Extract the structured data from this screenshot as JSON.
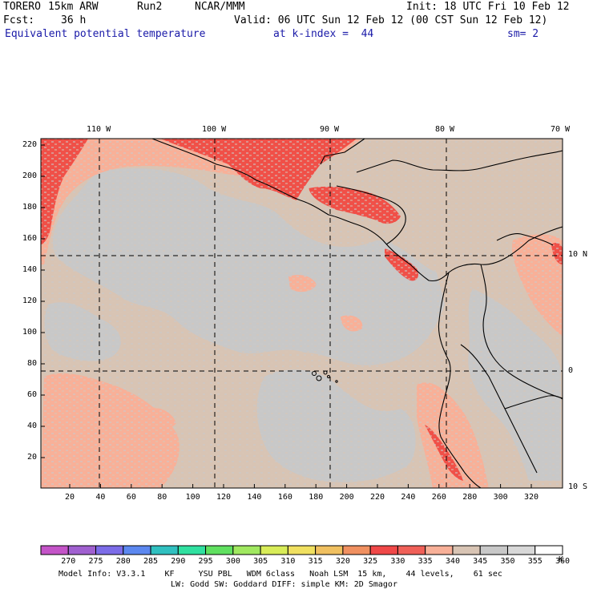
{
  "header": {
    "model": "TORERO",
    "resolution": "15km ARW",
    "run": "Run2",
    "org": "NCAR/MMM",
    "init": "Init: 18 UTC Fri 10 Feb 12",
    "fcst_label": "Fcst:",
    "fcst_value": "36 h",
    "valid": "Valid: 06 UTC Sun 12 Feb 12 (00 CST Sun 12 Feb 12)",
    "field": "Equivalent potential temperature",
    "level": "at k-index =  44",
    "smoothing": "sm= 2"
  },
  "map": {
    "lon_labels": [
      "110 W",
      "100 W",
      "90 W",
      "80 W",
      "70 W"
    ],
    "lat_labels": [
      "10 N",
      "0",
      "10 S"
    ],
    "x_ticks": [
      "20",
      "40",
      "60",
      "80",
      "100",
      "120",
      "140",
      "160",
      "180",
      "200",
      "220",
      "240",
      "260",
      "280",
      "300",
      "320"
    ],
    "y_ticks": [
      "220",
      "200",
      "180",
      "160",
      "140",
      "120",
      "100",
      "80",
      "60",
      "40",
      "20"
    ]
  },
  "colorbar": {
    "unit": "K",
    "levels": [
      "270",
      "275",
      "280",
      "285",
      "290",
      "295",
      "300",
      "305",
      "310",
      "315",
      "320",
      "325",
      "330",
      "335",
      "340",
      "345",
      "350",
      "355",
      "360"
    ],
    "colors": [
      "#c454c8",
      "#a060d0",
      "#7c6ce8",
      "#5c88f0",
      "#30c0c0",
      "#30e0a0",
      "#60e060",
      "#a0e860",
      "#d8ec58",
      "#f0e060",
      "#f0c060",
      "#f09060",
      "#f04848",
      "#f06058",
      "#f8b098",
      "#d8c4b4",
      "#c8c8c8",
      "#d8d8d8",
      "#ffffff"
    ]
  },
  "footer": {
    "line1": "Model Info: V3.3.1    KF     YSU PBL   WDM 6class   Noah LSM  15 km,    44 levels,    61 sec",
    "line2": "LW: Godd SW: Goddard DIFF: simple KM: 2D Smagor"
  }
}
